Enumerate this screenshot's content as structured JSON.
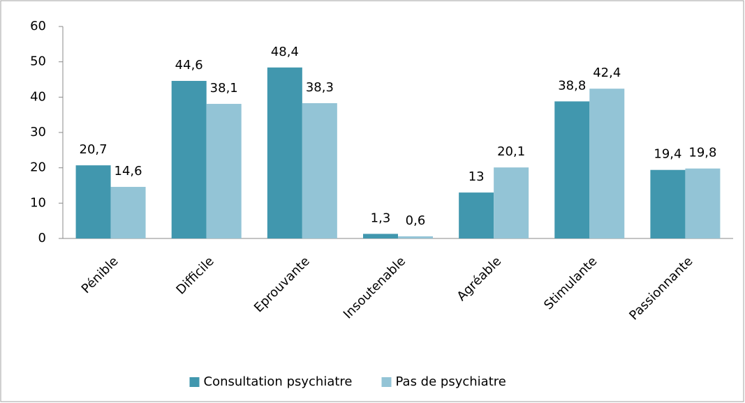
{
  "chart_data": {
    "type": "bar",
    "categories": [
      "Pénible",
      "Difficile",
      "Eprouvante",
      "Insoutenable",
      "Agréable",
      "Stimulante",
      "Passionnante"
    ],
    "series": [
      {
        "name": "Consultation psychiatre",
        "color": "#4197ae",
        "values": [
          20.7,
          44.6,
          48.4,
          1.3,
          13,
          38.8,
          19.4
        ],
        "value_labels": [
          "20,7",
          "44,6",
          "48,4",
          "1,3",
          "13",
          "38,8",
          "19,4"
        ]
      },
      {
        "name": "Pas de psychiatre",
        "color": "#93c4d6",
        "values": [
          14.6,
          38.1,
          38.3,
          0.6,
          20.1,
          42.4,
          19.8
        ],
        "value_labels": [
          "14,6",
          "38,1",
          "38,3",
          "0,6",
          "20,1",
          "42,4",
          "19,8"
        ]
      }
    ],
    "ylim": [
      0,
      60
    ],
    "yticks": [
      0,
      10,
      20,
      30,
      40,
      50,
      60
    ],
    "grid": false,
    "legend": "bottom"
  }
}
